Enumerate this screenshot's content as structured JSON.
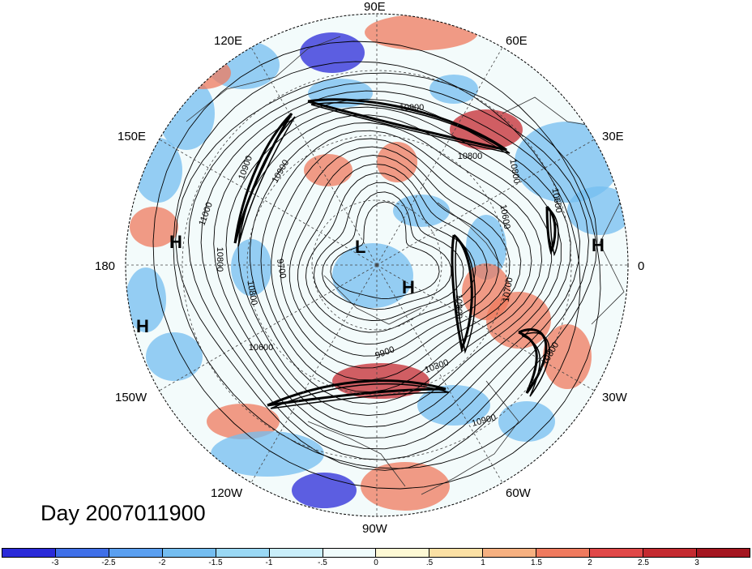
{
  "title": "Day 2007011900",
  "longitude_labels": [
    "90E",
    "60E",
    "30E",
    "0",
    "30W",
    "60W",
    "90W",
    "120W",
    "150W",
    "180",
    "150E",
    "120E"
  ],
  "pressure_systems": [
    "H",
    "H",
    "L",
    "H",
    "H"
  ],
  "contour_labels": [
    "10900",
    "10900",
    "10800",
    "10600",
    "10700",
    "10800",
    "10900",
    "10800",
    "10300",
    "9900",
    "10600",
    "9700",
    "10800",
    "11000",
    "10900",
    "10900",
    "10600",
    "10800"
  ],
  "colorbar": {
    "ticks": [
      "-3",
      "-2.5",
      "-2",
      "-1.5",
      "-1",
      "-.5",
      "0",
      ".5",
      "1",
      "1.5",
      "2",
      "2.5",
      "3"
    ],
    "colors": [
      "#2a2ad8",
      "#3f6fe8",
      "#5a9ff0",
      "#74bdf0",
      "#9ad8f4",
      "#c9eefa",
      "#f0fcfc",
      "#fdf8d4",
      "#fbe0a4",
      "#f6b080",
      "#ef7a5e",
      "#e04848",
      "#c42a30",
      "#a41620"
    ]
  },
  "map_colors": {
    "cold": "#74bdf0",
    "deep_cold": "#2a2ad8",
    "warm": "#ef7a5e",
    "deep_warm": "#c42a30",
    "neutral": "#f0fcfc"
  }
}
